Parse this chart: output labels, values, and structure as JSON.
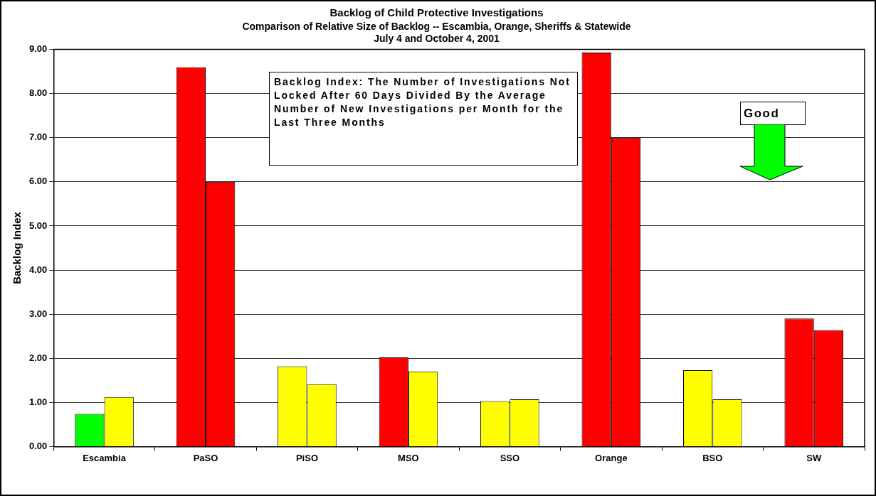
{
  "chart_data": {
    "type": "bar",
    "title": "Backlog of Child Protective Investigations",
    "subtitle": "Comparison of Relative Size of Backlog -- Escambia, Orange, Sheriffs & Statewide\nJuly 4 and October 4, 2001",
    "ylabel": "Backlog Index",
    "categories": [
      "Escambia",
      "PaSO",
      "PiSO",
      "MSO",
      "SSO",
      "Orange",
      "BSO",
      "SW"
    ],
    "series": [
      {
        "colors": [
          "#00ff00",
          "#ff0000",
          "#ffff00",
          "#ff0000",
          "#ffff00",
          "#ff0000",
          "#ffff00",
          "#ff0000"
        ],
        "values": [
          0.74,
          8.6,
          1.82,
          2.02,
          1.03,
          8.93,
          1.73,
          2.9
        ]
      },
      {
        "colors": [
          "#ffff00",
          "#ff0000",
          "#ffff00",
          "#ffff00",
          "#ffff00",
          "#ff0000",
          "#ffff00",
          "#ff0000"
        ],
        "values": [
          1.12,
          6.0,
          1.41,
          1.7,
          1.07,
          7.0,
          1.07,
          2.64
        ]
      }
    ],
    "ylim": [
      0,
      9
    ],
    "yticks": [
      {
        "value": 0,
        "label": "0.00"
      },
      {
        "value": 1,
        "label": "1.00"
      },
      {
        "value": 2,
        "label": "2.00"
      },
      {
        "value": 3,
        "label": "3.00"
      },
      {
        "value": 4,
        "label": "4.00"
      },
      {
        "value": 5,
        "label": "5.00"
      },
      {
        "value": 6,
        "label": "6.00"
      },
      {
        "value": 7,
        "label": "7.00"
      },
      {
        "value": 8,
        "label": "8.00"
      },
      {
        "value": 9,
        "label": "9.00"
      }
    ],
    "grid": "y",
    "legend": false,
    "annotations": [
      "Backlog Index: The Number of Investigations Not Locked After 60 Days Divided By the Average Number of New Investigations per Month for the Last Three Months",
      "Good"
    ]
  }
}
